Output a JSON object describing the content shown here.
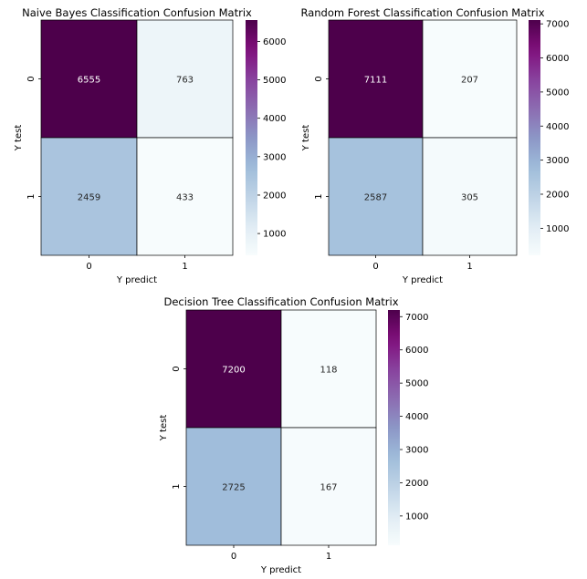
{
  "chart_data": [
    {
      "type": "heatmap",
      "title": "Naive Bayes Classification Confusion Matrix",
      "xlabel": "Y predict",
      "ylabel": "Y test",
      "x_categories": [
        "0",
        "1"
      ],
      "y_categories": [
        "0",
        "1"
      ],
      "values": [
        [
          6555,
          763
        ],
        [
          2459,
          433
        ]
      ],
      "colormap": "BuPu",
      "colorbar_range": [
        433,
        6555
      ],
      "colorbar_ticks": [
        1000,
        2000,
        3000,
        4000,
        5000,
        6000
      ]
    },
    {
      "type": "heatmap",
      "title": "Random Forest Classification Confusion Matrix",
      "xlabel": "Y predict",
      "ylabel": "Y test",
      "x_categories": [
        "0",
        "1"
      ],
      "y_categories": [
        "0",
        "1"
      ],
      "values": [
        [
          7111,
          207
        ],
        [
          2587,
          305
        ]
      ],
      "colormap": "BuPu",
      "colorbar_range": [
        207,
        7111
      ],
      "colorbar_ticks": [
        1000,
        2000,
        3000,
        4000,
        5000,
        6000,
        7000
      ]
    },
    {
      "type": "heatmap",
      "title": "Decision Tree Classification Confusion Matrix",
      "xlabel": "Y predict",
      "ylabel": "Y test",
      "x_categories": [
        "0",
        "1"
      ],
      "y_categories": [
        "0",
        "1"
      ],
      "values": [
        [
          7200,
          118
        ],
        [
          2725,
          167
        ]
      ],
      "colormap": "BuPu",
      "colorbar_range": [
        118,
        7200
      ],
      "colorbar_ticks": [
        1000,
        2000,
        3000,
        4000,
        5000,
        6000,
        7000
      ]
    }
  ]
}
